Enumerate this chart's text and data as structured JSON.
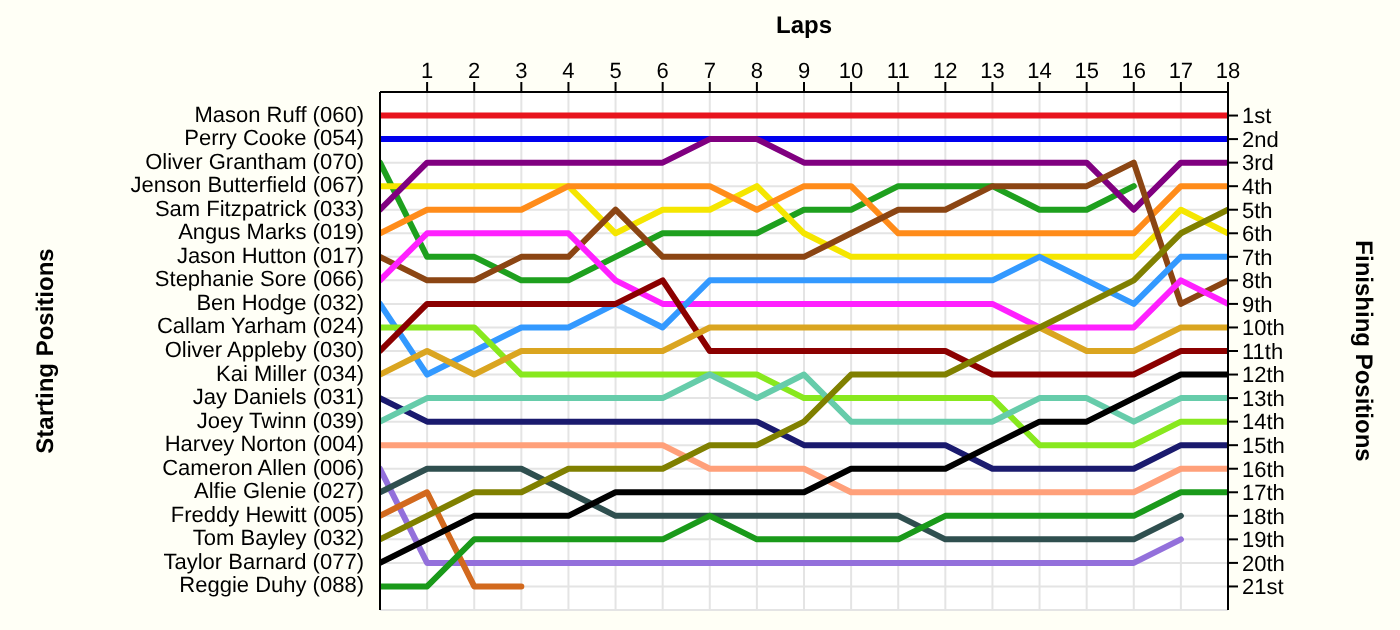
{
  "chart_data": {
    "type": "line",
    "xlabel": "Laps",
    "annotations": [
      "Starting Positions"
    ],
    "y2label": "Finishing Positions",
    "x": [
      0,
      1,
      2,
      3,
      4,
      5,
      6,
      7,
      8,
      9,
      10,
      11,
      12,
      13,
      14,
      15,
      16,
      17,
      18
    ],
    "xlim": [
      0,
      18
    ],
    "xticks": [
      1,
      2,
      3,
      4,
      5,
      6,
      7,
      8,
      9,
      10,
      11,
      12,
      13,
      14,
      15,
      16,
      17,
      18
    ],
    "y2lim": [
      22,
      0
    ],
    "y2ticks": [
      {
        "value": 1,
        "label": "1st"
      },
      {
        "value": 2,
        "label": "2nd"
      },
      {
        "value": 3,
        "label": "3rd"
      },
      {
        "value": 4,
        "label": "4th"
      },
      {
        "value": 5,
        "label": "5th"
      },
      {
        "value": 6,
        "label": "6th"
      },
      {
        "value": 7,
        "label": "7th"
      },
      {
        "value": 8,
        "label": "8th"
      },
      {
        "value": 9,
        "label": "9th"
      },
      {
        "value": 10,
        "label": "10th"
      },
      {
        "value": 11,
        "label": "11th"
      },
      {
        "value": 12,
        "label": "12th"
      },
      {
        "value": 13,
        "label": "13th"
      },
      {
        "value": 14,
        "label": "14th"
      },
      {
        "value": 15,
        "label": "15th"
      },
      {
        "value": 16,
        "label": "16th"
      },
      {
        "value": 17,
        "label": "17th"
      },
      {
        "value": 18,
        "label": "18th"
      },
      {
        "value": 19,
        "label": "19th"
      },
      {
        "value": 20,
        "label": "20th"
      },
      {
        "value": 21,
        "label": "21st"
      }
    ],
    "grid": true,
    "marker": "none",
    "line_style": "solid",
    "series": [
      {
        "name": "Perry Cooke (054)",
        "axis": "y2",
        "color": "#0000ee",
        "values": [
          2,
          2,
          2,
          2,
          2,
          2,
          2,
          2,
          2,
          2,
          2,
          2,
          2,
          2,
          2,
          2,
          2,
          2,
          2
        ]
      },
      {
        "name": "Mason Ruff (060)",
        "axis": "y2",
        "color": "#e8141e",
        "values": [
          1,
          1,
          1,
          1,
          1,
          1,
          1,
          1,
          1,
          1,
          1,
          1,
          1,
          1,
          1,
          1,
          1,
          1,
          1
        ]
      },
      {
        "name": "Oliver Grantham (070)",
        "axis": "y2",
        "color": "#1ea01e",
        "values": [
          3,
          7,
          7,
          8,
          8,
          7,
          6,
          6,
          6,
          5,
          5,
          4,
          4,
          4,
          5,
          5,
          4,
          null,
          null
        ]
      },
      {
        "name": "Jenson Butterfield (067)",
        "axis": "y2",
        "color": "#f5e600",
        "values": [
          4,
          4,
          4,
          4,
          4,
          6,
          5,
          5,
          4,
          6,
          7,
          7,
          7,
          7,
          7,
          7,
          7,
          5,
          6
        ]
      },
      {
        "name": "Sam Fitzpatrick (033)",
        "axis": "y2",
        "color": "#800080",
        "values": [
          5,
          3,
          3,
          3,
          3,
          3,
          3,
          2,
          2,
          3,
          3,
          3,
          3,
          3,
          3,
          3,
          5,
          3,
          3
        ]
      },
      {
        "name": "Angus Marks (019)",
        "axis": "y2",
        "color": "#ff8c1a",
        "values": [
          6,
          5,
          5,
          5,
          4,
          4,
          4,
          4,
          5,
          4,
          4,
          6,
          6,
          6,
          6,
          6,
          6,
          4,
          4
        ]
      },
      {
        "name": "Jason Hutton (017)",
        "axis": "y2",
        "color": "#8b4513",
        "values": [
          7,
          8,
          8,
          7,
          7,
          5,
          7,
          7,
          7,
          7,
          6,
          5,
          5,
          4,
          4,
          4,
          3,
          9,
          8
        ]
      },
      {
        "name": "Stephanie Sore (066)",
        "axis": "y2",
        "color": "#ff20ff",
        "values": [
          8,
          6,
          6,
          6,
          6,
          8,
          9,
          9,
          9,
          9,
          9,
          9,
          9,
          9,
          10,
          10,
          10,
          8,
          9
        ]
      },
      {
        "name": "Ben Hodge (032)",
        "axis": "y2",
        "color": "#3399ff",
        "values": [
          9,
          12,
          11,
          10,
          10,
          9,
          10,
          8,
          8,
          8,
          8,
          8,
          8,
          8,
          7,
          8,
          9,
          7,
          7
        ]
      },
      {
        "name": "Callam Yarham (024)",
        "axis": "y2",
        "color": "#88e81e",
        "values": [
          10,
          10,
          10,
          12,
          12,
          12,
          12,
          12,
          12,
          13,
          13,
          13,
          13,
          13,
          15,
          15,
          15,
          14,
          14
        ]
      },
      {
        "name": "Oliver Appleby (030)",
        "axis": "y2",
        "color": "#8b0000",
        "values": [
          11,
          9,
          9,
          9,
          9,
          9,
          8,
          11,
          11,
          11,
          11,
          11,
          11,
          12,
          12,
          12,
          12,
          11,
          11
        ]
      },
      {
        "name": "Kai Miller (034)",
        "axis": "y2",
        "color": "#daa520",
        "values": [
          12,
          11,
          12,
          11,
          11,
          11,
          11,
          10,
          10,
          10,
          10,
          10,
          10,
          10,
          10,
          11,
          11,
          10,
          10
        ]
      },
      {
        "name": "Jay Daniels (031)",
        "axis": "y2",
        "color": "#1a1a6e",
        "values": [
          13,
          14,
          14,
          14,
          14,
          14,
          14,
          14,
          14,
          15,
          15,
          15,
          15,
          16,
          16,
          16,
          16,
          15,
          15
        ]
      },
      {
        "name": "Joey Twinn (039)",
        "axis": "y2",
        "color": "#66ccaa",
        "values": [
          14,
          13,
          13,
          13,
          13,
          13,
          13,
          12,
          13,
          12,
          14,
          14,
          14,
          14,
          13,
          13,
          14,
          13,
          13
        ]
      },
      {
        "name": "Harvey Norton (004)",
        "axis": "y2",
        "color": "#ffa07a",
        "values": [
          15,
          15,
          15,
          15,
          15,
          15,
          15,
          16,
          16,
          16,
          17,
          17,
          17,
          17,
          17,
          17,
          17,
          16,
          16
        ]
      },
      {
        "name": "Cameron Allen (006)",
        "axis": "y2",
        "color": "#9370db",
        "values": [
          16,
          20,
          20,
          20,
          20,
          20,
          20,
          20,
          20,
          20,
          20,
          20,
          20,
          20,
          20,
          20,
          20,
          19,
          null
        ]
      },
      {
        "name": "Alfie Glenie (027)",
        "axis": "y2",
        "color": "#2f4f4f",
        "values": [
          17,
          16,
          16,
          16,
          17,
          18,
          18,
          18,
          18,
          18,
          18,
          18,
          19,
          19,
          19,
          19,
          19,
          18,
          null
        ]
      },
      {
        "name": "Freddy Hewitt (005)",
        "axis": "y2",
        "color": "#d2691e",
        "values": [
          18,
          17,
          21,
          21,
          null,
          null,
          null,
          null,
          null,
          null,
          null,
          null,
          null,
          null,
          null,
          null,
          null,
          null,
          null
        ]
      },
      {
        "name": "Tom Bayley (032)",
        "axis": "y2",
        "color": "#808000",
        "values": [
          19,
          18,
          17,
          17,
          16,
          16,
          16,
          15,
          15,
          14,
          12,
          12,
          12,
          11,
          10,
          9,
          8,
          6,
          5
        ]
      },
      {
        "name": "Taylor Barnard (077)",
        "axis": "y2",
        "color": "#000000",
        "values": [
          20,
          19,
          18,
          18,
          18,
          17,
          17,
          17,
          17,
          17,
          16,
          16,
          16,
          15,
          14,
          14,
          13,
          12,
          12
        ]
      },
      {
        "name": "Reggie Duhy (088)",
        "axis": "y2",
        "color": "#1a9a1a",
        "values": [
          21,
          21,
          19,
          19,
          19,
          19,
          19,
          18,
          19,
          19,
          19,
          19,
          18,
          18,
          18,
          18,
          18,
          17,
          17
        ]
      }
    ]
  }
}
